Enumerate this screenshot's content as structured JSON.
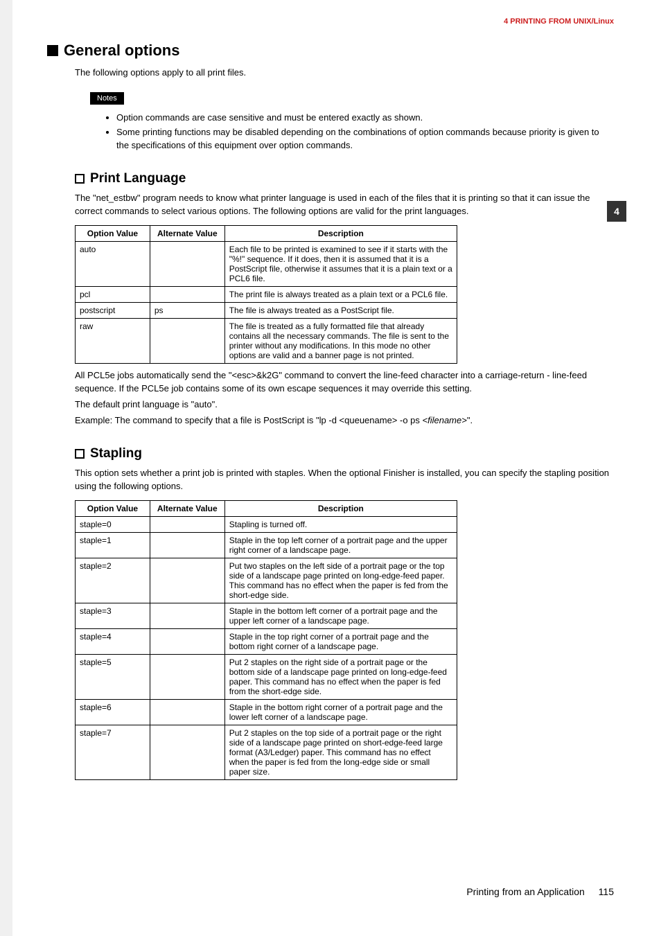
{
  "header": {
    "chapter": "4 PRINTING FROM UNIX/Linux",
    "tab_number": "4"
  },
  "section_general": {
    "title": "General options",
    "intro": "The following options apply to all print files.",
    "notes_label": "Notes",
    "notes": [
      "Option commands are case sensitive and must be entered exactly as shown.",
      "Some printing functions may be disabled depending on the combinations of option commands because priority is given to the specifications of this equipment over option commands."
    ]
  },
  "section_print_lang": {
    "title": "Print Language",
    "intro": "The \"net_estbw\" program needs to know what printer language is used in each of the files that it is printing so that it can issue the correct commands to select various options. The following options are valid for the print languages.",
    "table": {
      "headers": [
        "Option Value",
        "Alternate Value",
        "Description"
      ],
      "rows": [
        [
          "auto",
          "",
          "Each file to be printed is examined to see if it starts with the \"%!\" sequence. If it does, then it is assumed that it is a PostScript file, otherwise it assumes that it is a plain text or a PCL6 file."
        ],
        [
          "pcl",
          "",
          "The print file is always treated as a plain text or a PCL6 file."
        ],
        [
          "postscript",
          "ps",
          "The file is always treated as a PostScript file."
        ],
        [
          "raw",
          "",
          "The file is treated as a fully formatted file that already contains all the necessary commands. The file is sent to the printer without any modifications. In this mode no other options are valid and a banner page is not printed."
        ]
      ]
    },
    "after1": "All PCL5e jobs automatically send the \"<esc>&k2G\" command to convert the line-feed character into a carriage-return - line-feed sequence. If the PCL5e job contains some of its own escape sequences it may override this setting.",
    "after2": "The default print language is \"auto\".",
    "after3_pre": "Example: The command to specify that a file is PostScript is \"lp -d <queuename> -o ps ",
    "after3_ital": "<filename>",
    "after3_post": "\"."
  },
  "section_stapling": {
    "title": "Stapling",
    "intro": "This option sets whether a print job is printed with staples. When the optional Finisher is installed, you can specify the stapling position using the following options.",
    "table": {
      "headers": [
        "Option Value",
        "Alternate Value",
        "Description"
      ],
      "rows": [
        [
          "staple=0",
          "",
          "Stapling is turned off."
        ],
        [
          "staple=1",
          "",
          "Staple in the top left corner of a portrait page and the upper right corner of a landscape page."
        ],
        [
          "staple=2",
          "",
          "Put two staples on the left side of a portrait page or the top side of a landscape page printed on long-edge-feed paper. This command has no effect when the paper is fed from the short-edge side."
        ],
        [
          "staple=3",
          "",
          "Staple in the bottom left corner of a portrait page and the upper left corner of a landscape page."
        ],
        [
          "staple=4",
          "",
          "Staple in the top right corner of a portrait page and the bottom right corner of a landscape page."
        ],
        [
          "staple=5",
          "",
          "Put 2 staples on the right side of a portrait page or the bottom side of a landscape page printed on long-edge-feed paper. This command has no effect when the paper is fed from the short-edge side."
        ],
        [
          "staple=6",
          "",
          "Staple in the bottom right corner of a portrait page and the lower left corner of a landscape page."
        ],
        [
          "staple=7",
          "",
          "Put 2 staples on the top side of a portrait page or the right side of a landscape page printed on short-edge-feed large format (A3/Ledger) paper. This command has no effect when the paper is fed from the long-edge side or small paper size."
        ]
      ]
    }
  },
  "footer": {
    "title": "Printing from an Application",
    "page": "115"
  }
}
